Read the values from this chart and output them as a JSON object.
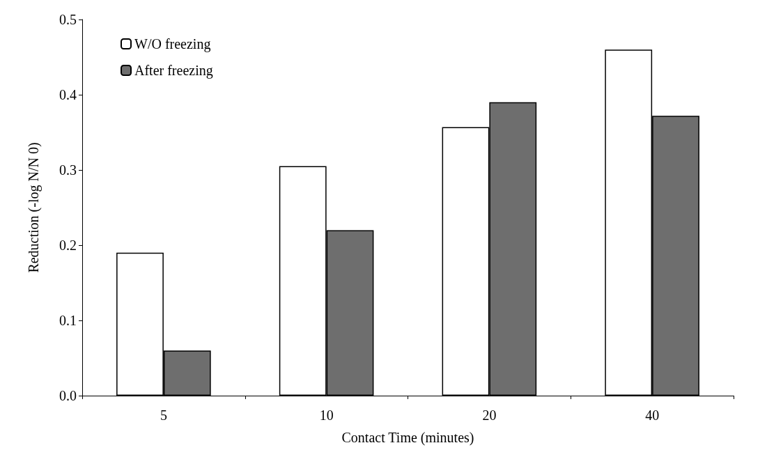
{
  "chart_data": {
    "type": "bar",
    "xlabel": "Contact Time (minutes)",
    "ylabel": "Reduction (-log N/N 0)",
    "categories": [
      "5",
      "10",
      "20",
      "40"
    ],
    "series": [
      {
        "name": "W/O freezing",
        "color": "#ffffff",
        "values": [
          0.19,
          0.305,
          0.357,
          0.46
        ]
      },
      {
        "name": "After freezing",
        "color": "#6e6e6e",
        "values": [
          0.06,
          0.22,
          0.39,
          0.372
        ]
      }
    ],
    "ylim": [
      0,
      0.5
    ],
    "yticks": [
      {
        "value": 0,
        "label": "0.0"
      },
      {
        "value": 0.1,
        "label": "0.1"
      },
      {
        "value": 0.2,
        "label": "0.2"
      },
      {
        "value": 0.3,
        "label": "0.3"
      },
      {
        "value": 0.4,
        "label": "0.4"
      },
      {
        "value": 0.5,
        "label": "0.5"
      }
    ],
    "grid": false,
    "legend": "top left"
  }
}
